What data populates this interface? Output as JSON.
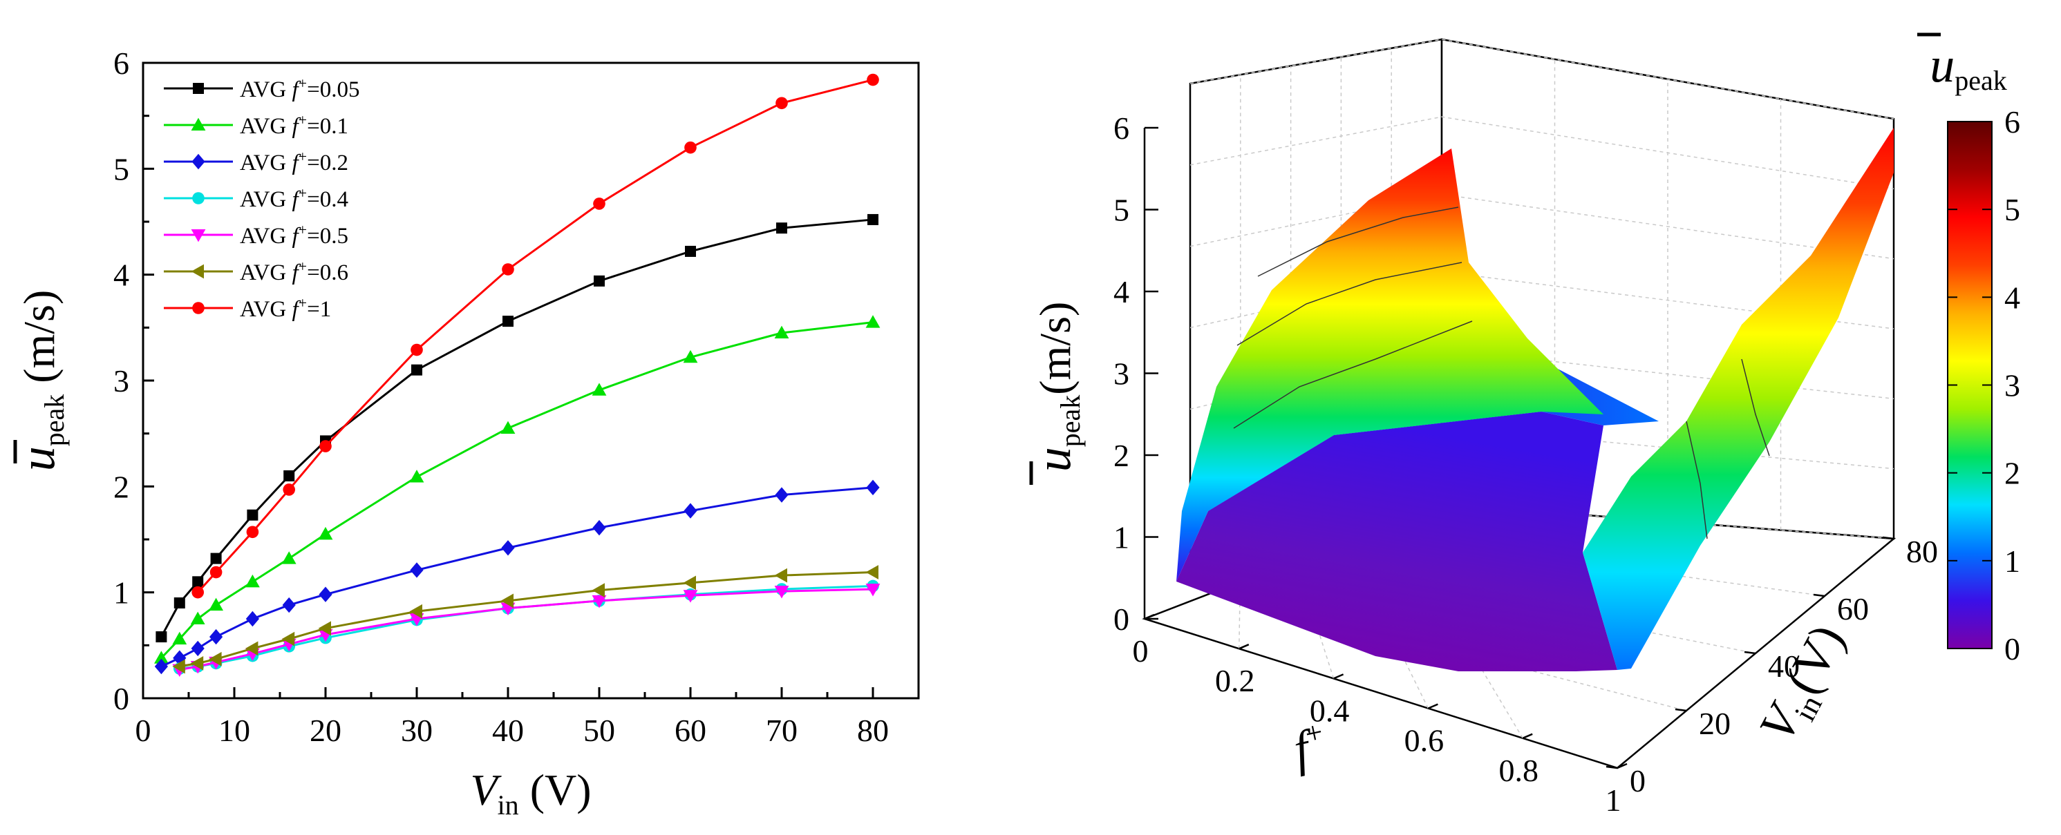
{
  "chart_data": [
    {
      "type": "line",
      "title": "",
      "xlabel": "V_in (V)",
      "xlabel_main": "V",
      "xlabel_sub": "in",
      "xlabel_unit": " (V)",
      "ylabel": "ū_peak (m/s)",
      "ylabel_main": "u",
      "ylabel_sub": "peak",
      "ylabel_unit": " (m/s)",
      "xlim": [
        0,
        85
      ],
      "ylim": [
        0,
        6
      ],
      "xticks": [
        "0",
        "10",
        "20",
        "30",
        "40",
        "50",
        "60",
        "70",
        "80"
      ],
      "yticks": [
        "0",
        "1",
        "2",
        "3",
        "4",
        "5",
        "6"
      ],
      "legend_location": "top-left",
      "x": [
        2,
        4,
        6,
        8,
        12,
        16,
        20,
        30,
        40,
        50,
        60,
        70,
        80
      ],
      "series": [
        {
          "name": "AVG f+=0.05",
          "prefix": "AVG ",
          "var": "f",
          "sup": "+",
          "val": "=0.05",
          "color": "#000000",
          "marker": "square",
          "values": [
            0.58,
            0.9,
            1.1,
            1.32,
            1.73,
            2.1,
            2.43,
            3.1,
            3.56,
            3.94,
            4.22,
            4.44,
            4.52
          ]
        },
        {
          "name": "AVG f+=0.1",
          "prefix": "AVG ",
          "var": "f",
          "sup": "+",
          "val": "=0.1",
          "color": "#00e000",
          "marker": "triangle-up",
          "values": [
            0.38,
            0.56,
            0.75,
            0.88,
            1.1,
            1.32,
            1.55,
            2.09,
            2.55,
            2.91,
            3.22,
            3.45,
            3.55
          ]
        },
        {
          "name": "AVG f+=0.2",
          "prefix": "AVG ",
          "var": "f",
          "sup": "+",
          "val": "=0.2",
          "color": "#1010e0",
          "marker": "diamond",
          "values": [
            0.3,
            0.38,
            0.47,
            0.58,
            0.75,
            0.88,
            0.98,
            1.21,
            1.42,
            1.61,
            1.77,
            1.92,
            1.99
          ]
        },
        {
          "name": "AVG f+=0.4",
          "prefix": "AVG ",
          "var": "f",
          "sup": "+",
          "val": "=0.4",
          "color": "#00e0e0",
          "marker": "circle",
          "values": [
            null,
            0.28,
            0.3,
            0.33,
            0.4,
            0.49,
            0.57,
            0.74,
            0.85,
            0.92,
            0.98,
            1.03,
            1.06
          ]
        },
        {
          "name": "AVG f+=0.5",
          "prefix": "AVG ",
          "var": "f",
          "sup": "+",
          "val": "=0.5",
          "color": "#ff00ff",
          "marker": "triangle-down",
          "values": [
            null,
            0.27,
            0.3,
            0.34,
            0.42,
            0.51,
            0.6,
            0.75,
            0.85,
            0.92,
            0.97,
            1.01,
            1.03
          ]
        },
        {
          "name": "AVG f+=0.6",
          "prefix": "AVG ",
          "var": "f",
          "sup": "+",
          "val": "=0.6",
          "color": "#808000",
          "marker": "triangle-left",
          "values": [
            null,
            0.3,
            0.33,
            0.37,
            0.47,
            0.56,
            0.66,
            0.82,
            0.92,
            1.02,
            1.09,
            1.16,
            1.19
          ]
        },
        {
          "name": "AVG f+=1",
          "prefix": "AVG ",
          "var": "f",
          "sup": "+",
          "val": "=1",
          "color": "#ff0000",
          "marker": "circle",
          "values": [
            null,
            null,
            1.0,
            1.19,
            1.57,
            1.97,
            2.38,
            3.29,
            4.05,
            4.67,
            5.2,
            5.62,
            5.84
          ]
        }
      ]
    },
    {
      "type": "surface3d",
      "title": "",
      "xlabel": "f+",
      "xlabel_main": "f",
      "xlabel_sup": "+",
      "ylabel": "V_in (V)",
      "ylabel_main": "V",
      "ylabel_sub": "in",
      "ylabel_unit": "(V)",
      "zlabel": "ū_peak(m/s)",
      "zlabel_main": "u",
      "zlabel_sub": "peak",
      "zlabel_unit": "(m/s)",
      "xlim": [
        0,
        1
      ],
      "ylim": [
        0,
        80
      ],
      "zlim": [
        0,
        6
      ],
      "xticks": [
        "0",
        "0.2",
        "0.4",
        "0.6",
        "0.8",
        "1"
      ],
      "yticks": [
        "0",
        "20",
        "40",
        "60",
        "80"
      ],
      "zticks": [
        "0",
        "1",
        "2",
        "3",
        "4",
        "5",
        "6"
      ],
      "colorbar": {
        "label_main": "u",
        "label_sub": "peak",
        "range": [
          0,
          6
        ],
        "ticks": [
          "0",
          "1",
          "2",
          "3",
          "4",
          "5",
          "6"
        ],
        "colors": [
          "#7a00a8",
          "#3a10e8",
          "#0070ff",
          "#00e0ff",
          "#00e060",
          "#a0f000",
          "#ffff00",
          "#ffb000",
          "#ff4000",
          "#ff0000",
          "#a00000",
          "#600000"
        ]
      }
    }
  ]
}
